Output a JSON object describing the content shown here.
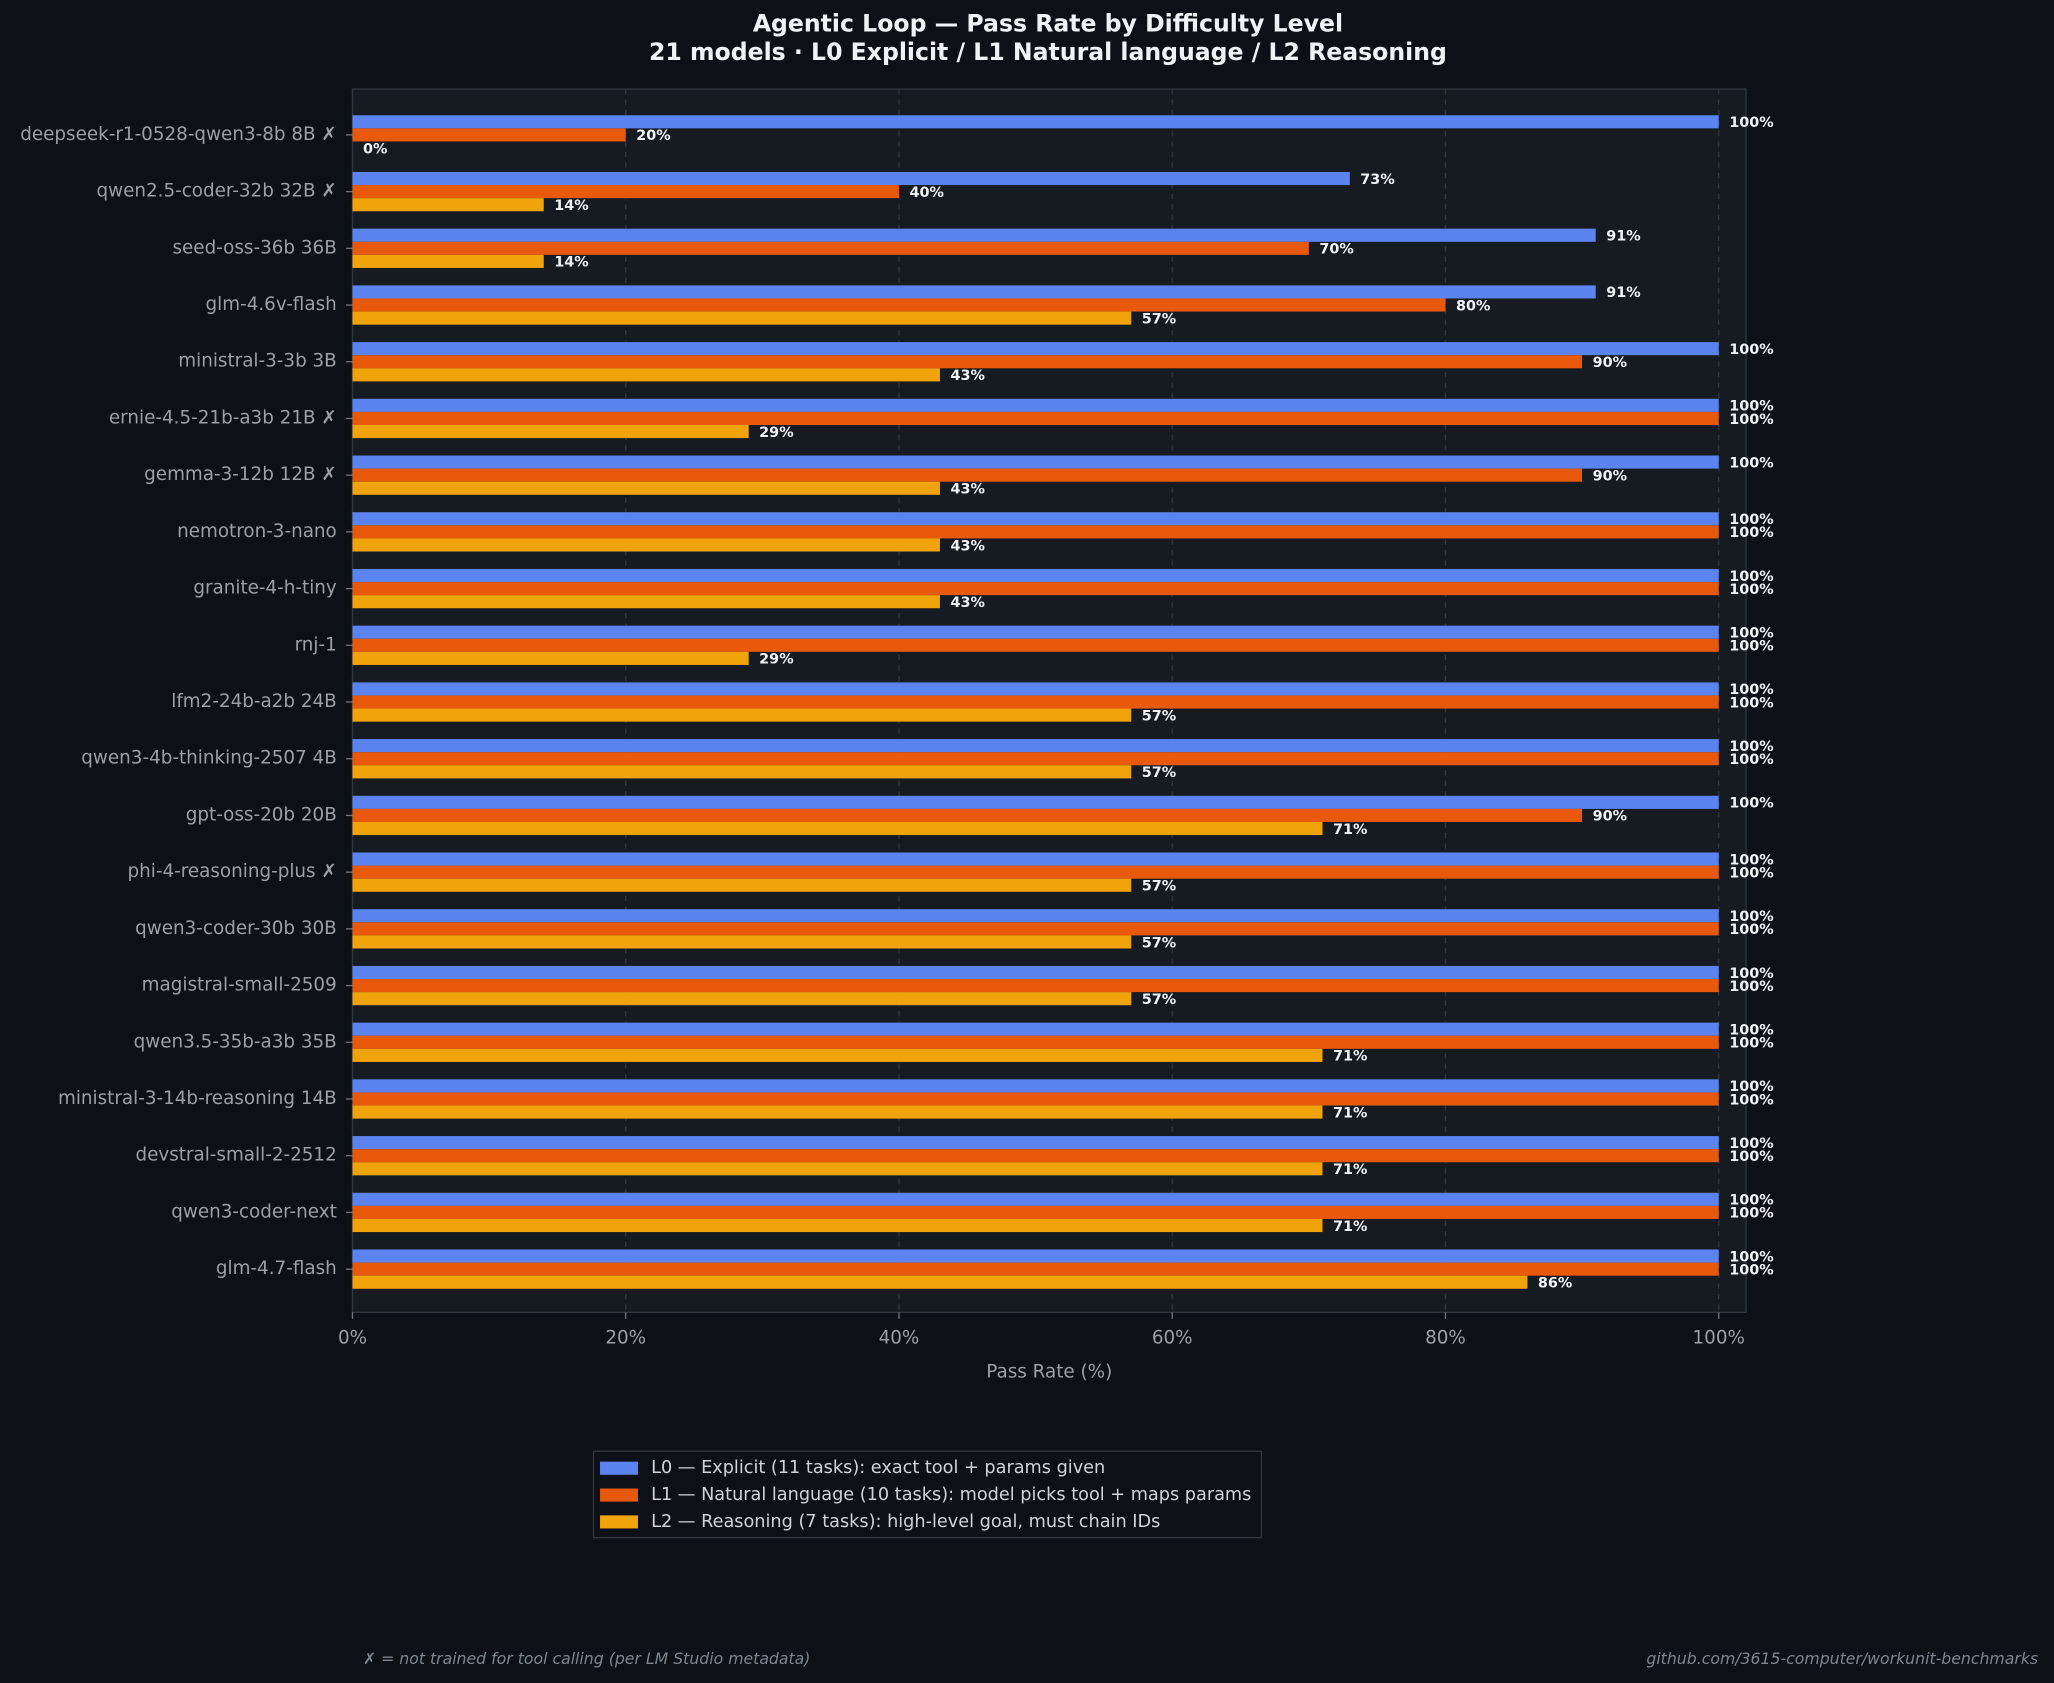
{
  "chart_data": {
    "type": "barh",
    "title": "Agentic Loop — Pass Rate by Difficulty Level",
    "subtitle": "21 models · L0 Explicit / L1 Natural language / L2 Reasoning",
    "x_label": "Pass Rate (%)",
    "categories": [
      "deepseek-r1-0528-qwen3-8b 8B ✗",
      "qwen2.5-coder-32b 32B ✗",
      "seed-oss-36b 36B",
      "glm-4.6v-flash",
      "ministral-3-3b 3B",
      "ernie-4.5-21b-a3b 21B ✗",
      "gemma-3-12b 12B ✗",
      "nemotron-3-nano",
      "granite-4-h-tiny",
      "rnj-1",
      "lfm2-24b-a2b 24B",
      "qwen3-4b-thinking-2507 4B",
      "gpt-oss-20b 20B",
      "phi-4-reasoning-plus ✗",
      "qwen3-coder-30b 30B",
      "magistral-small-2509",
      "qwen3.5-35b-a3b 35B",
      "ministral-3-14b-reasoning 14B",
      "devstral-small-2-2512",
      "qwen3-coder-next",
      "glm-4.7-flash"
    ],
    "series": [
      {
        "name": "L0 — Explicit (11 tasks): exact tool + params given",
        "color": "#5b84f0",
        "values": [
          100,
          73,
          91,
          91,
          100,
          100,
          100,
          100,
          100,
          100,
          100,
          100,
          100,
          100,
          100,
          100,
          100,
          100,
          100,
          100,
          100
        ],
        "value_labels": [
          "100%",
          "73%",
          "91%",
          "91%",
          "100%",
          "100%",
          "100%",
          "100%",
          "100%",
          "100%",
          "100%",
          "100%",
          "100%",
          "100%",
          "100%",
          "100%",
          "100%",
          "100%",
          "100%",
          "100%",
          "100%"
        ]
      },
      {
        "name": "L1 — Natural language (10 tasks): model picks tool + maps params",
        "color": "#e8590c",
        "values": [
          20,
          40,
          70,
          80,
          90,
          100,
          90,
          100,
          100,
          100,
          100,
          100,
          90,
          100,
          100,
          100,
          100,
          100,
          100,
          100,
          100
        ],
        "value_labels": [
          "20%",
          "40%",
          "70%",
          "80%",
          "90%",
          "100%",
          "90%",
          "100%",
          "100%",
          "100%",
          "100%",
          "100%",
          "90%",
          "100%",
          "100%",
          "100%",
          "100%",
          "100%",
          "100%",
          "100%",
          "100%"
        ]
      },
      {
        "name": "L2 — Reasoning (7 tasks): high-level goal, must chain IDs",
        "color": "#f0a30a",
        "values": [
          0,
          14,
          14,
          57,
          43,
          29,
          43,
          43,
          43,
          29,
          57,
          57,
          71,
          57,
          57,
          57,
          71,
          71,
          71,
          71,
          86
        ],
        "value_labels": [
          "0%",
          "14%",
          "14%",
          "57%",
          "43%",
          "29%",
          "43%",
          "43%",
          "43%",
          "29%",
          "57%",
          "57%",
          "71%",
          "57%",
          "57%",
          "57%",
          "71%",
          "71%",
          "71%",
          "71%",
          "86%"
        ]
      }
    ],
    "xlim": [
      0,
      102
    ],
    "xticks": [
      {
        "value": 0,
        "label": "0%"
      },
      {
        "value": 20,
        "label": "20%"
      },
      {
        "value": 40,
        "label": "40%"
      },
      {
        "value": 60,
        "label": "60%"
      },
      {
        "value": 80,
        "label": "80%"
      },
      {
        "value": 100,
        "label": "100%"
      }
    ],
    "grid": true,
    "legend": "bottom",
    "footnote": "✗ = not trained for tool calling (per LM Studio metadata)",
    "source": "github.com/3615-computer/workunit-benchmarks"
  }
}
